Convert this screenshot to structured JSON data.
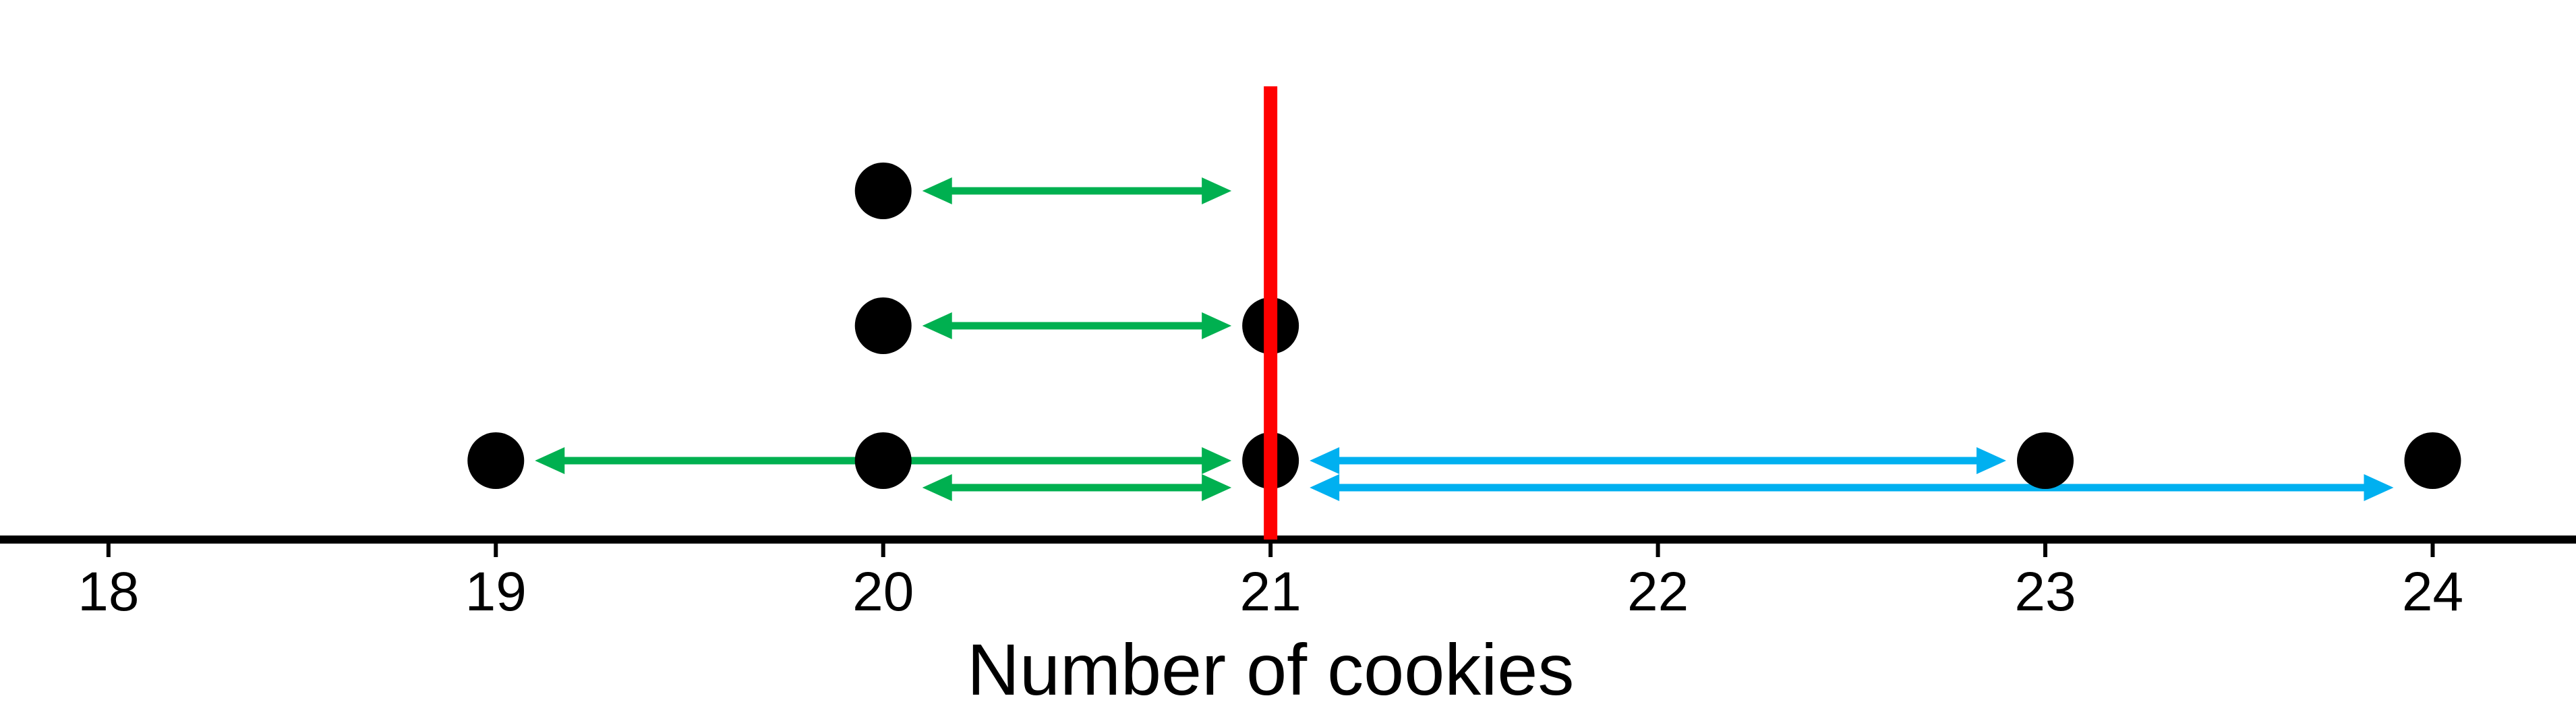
{
  "chart_data": {
    "type": "dot_plot",
    "title": "",
    "xlabel": "Number of cookies",
    "ylabel": "",
    "xlim": [
      17.72,
      24.37
    ],
    "ticks": [
      18,
      19,
      20,
      21,
      22,
      23,
      24
    ],
    "tick_labels": [
      "18",
      "19",
      "20",
      "21",
      "22",
      "23",
      "24"
    ],
    "grid": false,
    "legend": "none",
    "points": [
      {
        "x": 19,
        "level": 1
      },
      {
        "x": 20,
        "level": 1
      },
      {
        "x": 20,
        "level": 2
      },
      {
        "x": 20,
        "level": 3
      },
      {
        "x": 21,
        "level": 1
      },
      {
        "x": 21,
        "level": 2
      },
      {
        "x": 23,
        "level": 1
      },
      {
        "x": 24,
        "level": 1
      }
    ],
    "mean_line": {
      "x": 21,
      "color": "#ff0000"
    },
    "deviation_arrows": [
      {
        "from": 20,
        "to": 21,
        "level": 3,
        "color": "#00b050"
      },
      {
        "from": 20,
        "to": 21,
        "level": 2,
        "color": "#00b050"
      },
      {
        "from": 19,
        "to": 21,
        "level": 1,
        "color": "#00b050"
      },
      {
        "from": 20,
        "to": 21,
        "level": 0.8,
        "color": "#00b050"
      },
      {
        "from": 21,
        "to": 23,
        "level": 1,
        "color": "#00b0f0"
      },
      {
        "from": 21,
        "to": 24,
        "level": 0.8,
        "color": "#00b0f0"
      }
    ],
    "colors": {
      "points": "#000000",
      "axis": "#000000",
      "mean_line": "#ff0000",
      "below_mean": "#00b050",
      "above_mean": "#00b0f0"
    }
  }
}
